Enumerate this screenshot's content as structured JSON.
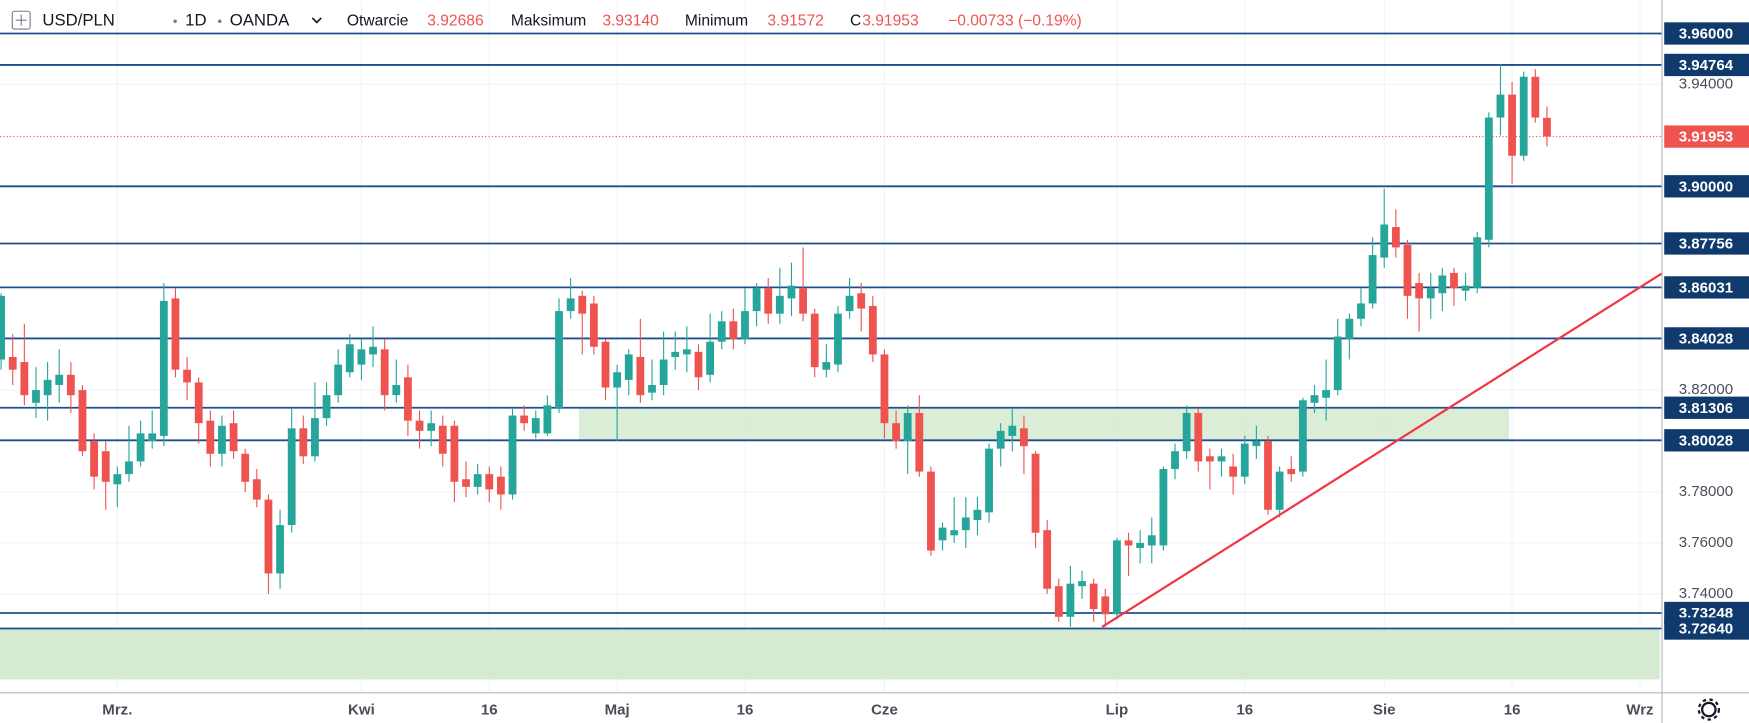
{
  "chart_data": {
    "type": "candlestick",
    "header": {
      "symbol": "USD/PLN",
      "interval": "1D",
      "source": "OANDA",
      "open_label": "Otwarcie",
      "open": "3.92686",
      "high_label": "Maksimum",
      "high": "3.93140",
      "low_label": "Minimum",
      "low": "3.91572",
      "close_label": "C",
      "close": "3.91953",
      "change": "−0.00733 (−0.19%)"
    },
    "up_color": "#26a69a",
    "down_color": "#ef5350",
    "level_color": "#1d4f8f",
    "label_color": "#0f3a6b",
    "ylim": [
      3.7016,
      3.9731
    ],
    "yticks": [
      {
        "value": 3.94,
        "label": "3.94000"
      },
      {
        "value": 3.82,
        "label": "3.82000"
      },
      {
        "value": 3.78,
        "label": "3.78000"
      },
      {
        "value": 3.76,
        "label": "3.76000"
      },
      {
        "value": 3.74,
        "label": "3.74000"
      }
    ],
    "grid": true,
    "categories": [
      null,
      null,
      null,
      null,
      null,
      null,
      null,
      null,
      null,
      null,
      "Mrz.",
      null,
      null,
      null,
      null,
      null,
      null,
      null,
      null,
      null,
      null,
      null,
      null,
      null,
      null,
      null,
      null,
      null,
      null,
      null,
      null,
      "Kwi",
      null,
      null,
      null,
      null,
      null,
      null,
      null,
      null,
      null,
      null,
      "16",
      null,
      null,
      null,
      null,
      null,
      null,
      null,
      null,
      null,
      null,
      "Maj",
      null,
      null,
      null,
      null,
      null,
      null,
      null,
      null,
      null,
      null,
      "16",
      null,
      null,
      null,
      null,
      null,
      null,
      null,
      null,
      null,
      null,
      null,
      "Cze",
      null,
      null,
      null,
      null,
      null,
      null,
      null,
      null,
      null,
      null,
      null,
      null,
      null,
      null,
      null,
      null,
      null,
      null,
      null,
      "Lip",
      null,
      null,
      null,
      null,
      null,
      null,
      null,
      null,
      null,
      null,
      "16",
      null,
      null,
      null,
      null,
      null,
      null,
      null,
      null,
      null,
      null,
      null,
      "Sie",
      null,
      null,
      null,
      null,
      null,
      null,
      null,
      null,
      null,
      null,
      "16",
      null,
      null,
      null,
      null,
      null,
      null,
      null,
      null,
      null,
      null,
      "Wrz"
    ],
    "open": [
      3.832,
      3.833,
      3.831,
      3.815,
      3.818,
      3.822,
      3.826,
      3.82,
      3.8,
      3.796,
      3.783,
      3.787,
      3.792,
      3.8,
      3.802,
      3.856,
      3.828,
      3.823,
      3.808,
      3.795,
      3.807,
      3.795,
      3.785,
      3.777,
      3.748,
      3.767,
      3.805,
      3.794,
      3.809,
      3.818,
      3.827,
      3.83,
      3.834,
      3.836,
      3.818,
      3.825,
      3.808,
      3.804,
      3.806,
      3.806,
      3.785,
      3.782,
      3.787,
      3.786,
      3.779,
      3.81,
      3.803,
      3.803,
      3.813,
      3.851,
      3.857,
      3.854,
      3.839,
      3.821,
      3.824,
      3.833,
      3.819,
      3.822,
      3.833,
      3.834,
      3.835,
      3.826,
      3.839,
      3.847,
      3.84,
      3.851,
      3.86,
      3.85,
      3.856,
      3.86,
      3.85,
      3.828,
      3.83,
      3.851,
      3.858,
      3.853,
      3.834,
      3.807,
      3.8,
      3.811,
      3.788,
      3.761,
      3.763,
      3.765,
      3.769,
      3.772,
      3.797,
      3.802,
      3.805,
      3.795,
      3.765,
      3.743,
      3.731,
      3.743,
      3.744,
      3.739,
      3.732,
      3.761,
      3.758,
      3.759,
      3.759,
      3.789,
      3.796,
      3.811,
      3.794,
      3.792,
      3.79,
      3.786,
      3.798,
      3.8,
      3.773,
      3.789,
      3.788,
      3.815,
      3.817,
      3.82,
      3.84,
      3.848,
      3.854,
      3.872,
      3.884,
      3.877,
      3.862,
      3.856,
      3.858,
      3.866,
      3.859,
      3.86,
      3.879,
      3.927,
      3.936,
      3.912,
      3.943,
      3.92686,
      null,
      null,
      null,
      null,
      null,
      null,
      null,
      null
    ],
    "high": [
      3.858,
      3.842,
      3.846,
      3.829,
      3.831,
      3.836,
      3.831,
      3.822,
      3.803,
      3.8,
      3.79,
      3.806,
      3.808,
      3.812,
      3.862,
      3.86,
      3.833,
      3.825,
      3.812,
      3.81,
      3.812,
      3.797,
      3.789,
      3.779,
      3.773,
      3.813,
      3.81,
      3.823,
      3.823,
      3.836,
      3.842,
      3.84,
      3.845,
      3.84,
      3.832,
      3.83,
      3.812,
      3.812,
      3.81,
      3.808,
      3.792,
      3.791,
      3.79,
      3.79,
      3.813,
      3.814,
      3.812,
      3.818,
      3.856,
      3.864,
      3.859,
      3.857,
      3.84,
      3.83,
      3.836,
      3.848,
      3.832,
      3.843,
      3.843,
      3.845,
      3.838,
      3.85,
      3.851,
      3.852,
      3.86,
      3.862,
      3.864,
      3.868,
      3.87,
      3.876,
      3.852,
      3.838,
      3.853,
      3.864,
      3.862,
      3.857,
      3.836,
      3.812,
      3.814,
      3.818,
      3.79,
      3.768,
      3.778,
      3.778,
      3.778,
      3.799,
      3.807,
      3.813,
      3.81,
      3.796,
      3.769,
      3.746,
      3.751,
      3.749,
      3.746,
      3.742,
      3.762,
      3.764,
      3.765,
      3.77,
      3.79,
      3.799,
      3.814,
      3.813,
      3.797,
      3.797,
      3.795,
      3.802,
      3.806,
      3.802,
      3.79,
      3.794,
      3.817,
      3.822,
      3.832,
      3.848,
      3.85,
      3.86,
      3.88,
      3.899,
      3.891,
      3.879,
      3.866,
      3.866,
      3.868,
      3.868,
      3.866,
      3.882,
      3.929,
      3.948,
      3.941,
      3.945,
      3.946,
      3.9314,
      null,
      null,
      null,
      null,
      null,
      null,
      null,
      null
    ],
    "low": [
      3.828,
      3.822,
      3.814,
      3.809,
      3.808,
      3.815,
      3.811,
      3.794,
      3.781,
      3.773,
      3.774,
      3.784,
      3.79,
      3.797,
      3.798,
      3.825,
      3.816,
      3.799,
      3.79,
      3.79,
      3.793,
      3.78,
      3.774,
      3.74,
      3.742,
      3.764,
      3.791,
      3.792,
      3.806,
      3.815,
      3.825,
      3.824,
      3.829,
      3.812,
      3.815,
      3.802,
      3.797,
      3.798,
      3.79,
      3.776,
      3.778,
      3.779,
      3.776,
      3.773,
      3.777,
      3.804,
      3.801,
      3.802,
      3.811,
      3.848,
      3.834,
      3.834,
      3.816,
      3.8,
      3.818,
      3.815,
      3.816,
      3.818,
      3.828,
      3.827,
      3.82,
      3.823,
      3.836,
      3.836,
      3.838,
      3.845,
      3.846,
      3.846,
      3.849,
      3.847,
      3.825,
      3.825,
      3.827,
      3.848,
      3.843,
      3.831,
      3.801,
      3.797,
      3.787,
      3.786,
      3.755,
      3.757,
      3.76,
      3.758,
      3.763,
      3.768,
      3.79,
      3.796,
      3.787,
      3.758,
      3.74,
      3.729,
      3.727,
      3.738,
      3.729,
      3.727,
      3.73,
      3.747,
      3.752,
      3.752,
      3.757,
      3.785,
      3.793,
      3.788,
      3.781,
      3.786,
      3.779,
      3.783,
      3.793,
      3.771,
      3.77,
      3.784,
      3.786,
      3.811,
      3.808,
      3.818,
      3.832,
      3.845,
      3.852,
      3.868,
      3.872,
      3.848,
      3.843,
      3.848,
      3.851,
      3.853,
      3.855,
      3.858,
      3.876,
      3.92,
      3.901,
      3.91,
      3.925,
      3.91572,
      null,
      null,
      null,
      null,
      null,
      null,
      null,
      null
    ],
    "close": [
      3.857,
      3.828,
      3.818,
      3.82,
      3.824,
      3.826,
      3.818,
      3.796,
      3.786,
      3.784,
      3.787,
      3.792,
      3.803,
      3.803,
      3.855,
      3.828,
      3.823,
      3.807,
      3.795,
      3.806,
      3.796,
      3.784,
      3.777,
      3.748,
      3.767,
      3.805,
      3.794,
      3.809,
      3.818,
      3.83,
      3.838,
      3.836,
      3.837,
      3.818,
      3.822,
      3.808,
      3.804,
      3.807,
      3.795,
      3.784,
      3.782,
      3.787,
      3.781,
      3.779,
      3.81,
      3.807,
      3.809,
      3.814,
      3.851,
      3.856,
      3.85,
      3.837,
      3.821,
      3.827,
      3.834,
      3.818,
      3.822,
      3.832,
      3.835,
      3.836,
      3.825,
      3.839,
      3.847,
      3.84,
      3.851,
      3.86,
      3.85,
      3.857,
      3.861,
      3.85,
      3.829,
      3.831,
      3.85,
      3.857,
      3.852,
      3.834,
      3.807,
      3.8,
      3.811,
      3.788,
      3.757,
      3.766,
      3.765,
      3.77,
      3.773,
      3.797,
      3.804,
      3.806,
      3.798,
      3.764,
      3.742,
      3.731,
      3.744,
      3.745,
      3.734,
      3.732,
      3.761,
      3.759,
      3.76,
      3.763,
      3.789,
      3.796,
      3.811,
      3.792,
      3.792,
      3.794,
      3.786,
      3.799,
      3.8,
      3.773,
      3.788,
      3.787,
      3.816,
      3.818,
      3.82,
      3.841,
      3.848,
      3.854,
      3.873,
      3.885,
      3.876,
      3.857,
      3.856,
      3.86,
      3.865,
      3.86,
      3.861,
      3.88,
      3.927,
      3.936,
      3.912,
      3.943,
      3.927,
      3.91953,
      null,
      null,
      null,
      null,
      null,
      null,
      null,
      null
    ],
    "levels": [
      {
        "value": 3.96,
        "label": "3.96000"
      },
      {
        "value": 3.94764,
        "label": "3.94764"
      },
      {
        "value": 3.9,
        "label": "3.90000"
      },
      {
        "value": 3.87756,
        "label": "3.87756"
      },
      {
        "value": 3.86031,
        "label": "3.86031"
      },
      {
        "value": 3.84028,
        "label": "3.84028"
      },
      {
        "value": 3.81306,
        "label": "3.81306"
      },
      {
        "value": 3.80028,
        "label": "3.80028"
      },
      {
        "value": 3.73248,
        "label": "3.73248"
      },
      {
        "value": 3.7264,
        "label": "3.72640"
      }
    ],
    "last_price": {
      "value": 3.91953,
      "label": "3.91953"
    },
    "zones": [
      {
        "ylim": [
          3.80028,
          3.81306
        ],
        "color": "#d7ead3"
      },
      {
        "ylim": [
          3.7064,
          3.7264
        ],
        "color": "#d0e8cb"
      }
    ],
    "trendline": {
      "values": [
        3.727,
        3.8658
      ],
      "color": "#f23645"
    }
  }
}
